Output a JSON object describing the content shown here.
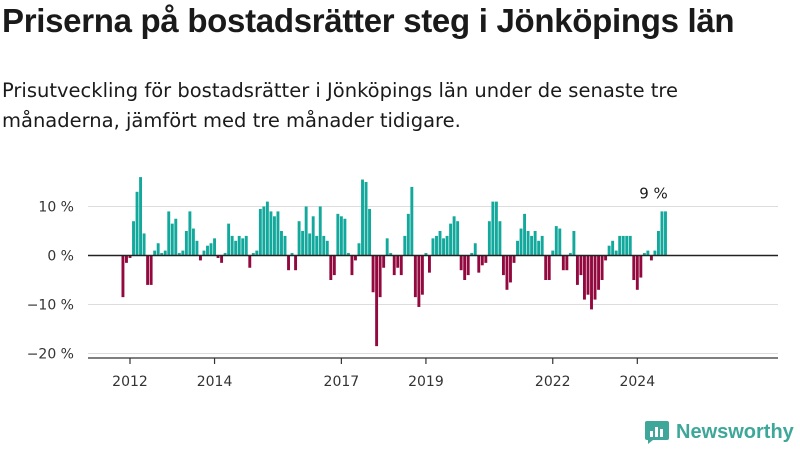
{
  "title": "Priserna på bostadsrätter steg i Jönköpings län",
  "subtitle": "Prisutveckling för bostadsrätter i Jönköpings län under de senaste tre månaderna, jämfört med tre månader tidigare.",
  "brand": {
    "name": "Newsworthy",
    "icon": "newsworthy-logo-icon",
    "color": "#3ea79a"
  },
  "colors": {
    "positive": "#12a89c",
    "negative": "#92093f",
    "zero_line": "#222222",
    "grid": "#dddddd"
  },
  "chart_data": {
    "type": "bar",
    "frequency": "monthly",
    "start": "2011-11",
    "ylim": [
      -20,
      18
    ],
    "yticks": [
      {
        "value": 10,
        "label": "10 %"
      },
      {
        "value": 0,
        "label": "0 %"
      },
      {
        "value": -10,
        "label": "−10 %"
      },
      {
        "value": -20,
        "label": "−20 %"
      }
    ],
    "xticks": [
      "2012",
      "2014",
      "2017",
      "2019",
      "2022",
      "2024"
    ],
    "annotation": {
      "label": "9 %",
      "value": 9
    },
    "values": [
      -8.5,
      -1.5,
      -0.5,
      7,
      13,
      16,
      4.5,
      -6,
      -6,
      1,
      2.5,
      0.5,
      1,
      9,
      6.5,
      7.5,
      0.5,
      1,
      5,
      9,
      5.5,
      3,
      -1,
      1,
      2,
      2.5,
      3.5,
      -0.5,
      -1.5,
      0.5,
      6.5,
      4,
      3,
      4,
      3.5,
      4,
      -2.5,
      0.5,
      1,
      9.5,
      10,
      11,
      9,
      8,
      9,
      5,
      4,
      -3,
      0.5,
      -3,
      7,
      5,
      10,
      4.5,
      8,
      4,
      10,
      4,
      3,
      -5,
      -4,
      8.5,
      8,
      7.5,
      0.5,
      -4,
      -1,
      2.5,
      15.5,
      15,
      9.5,
      -7.5,
      -18.5,
      -8.5,
      -2.5,
      3.5,
      0.5,
      -4,
      -2.5,
      -4,
      4,
      8.5,
      14,
      -8.5,
      -10.5,
      -8,
      0.5,
      -3.5,
      3.5,
      4,
      5,
      3.5,
      4,
      6.5,
      8,
      7,
      -3,
      -5,
      -4,
      0.5,
      2.5,
      -3.5,
      -2,
      -1.5,
      7,
      11,
      11,
      7,
      -4,
      -7,
      -5.5,
      -1.5,
      3,
      5.5,
      8.5,
      5,
      4,
      5,
      3,
      4,
      -5,
      -5,
      1,
      6,
      5.5,
      -3,
      -3,
      0.5,
      5,
      -6,
      -4,
      -9,
      -8,
      -11,
      -9,
      -7,
      -5,
      -1,
      2,
      3,
      1,
      4,
      4,
      4,
      4,
      -5,
      -7,
      -4.5,
      0.5,
      1,
      -1,
      1,
      5,
      9,
      9
    ]
  }
}
